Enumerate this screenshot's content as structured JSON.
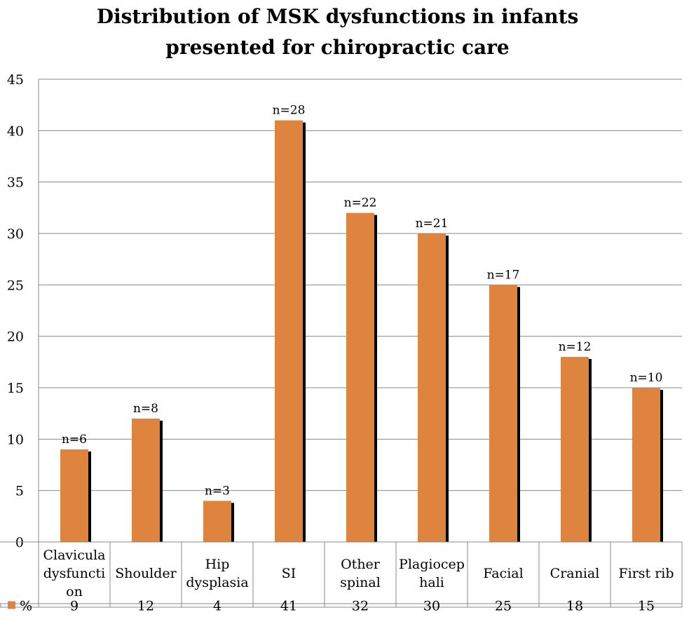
{
  "chart_data": {
    "type": "bar",
    "title_lines": [
      "Distribution of MSK dysfunctions in infants",
      "presented for chiropractic care"
    ],
    "categories": [
      [
        "Clavicula",
        "dysfuncti",
        "on"
      ],
      [
        "Shoulder"
      ],
      [
        "Hip",
        "dysplasia"
      ],
      [
        "SI"
      ],
      [
        "Other",
        "spinal"
      ],
      [
        "Plagiocep",
        "hali"
      ],
      [
        "Facial"
      ],
      [
        "Cranial"
      ],
      [
        "First rib"
      ]
    ],
    "series": [
      {
        "name": "%",
        "values": [
          9,
          12,
          4,
          41,
          32,
          30,
          25,
          18,
          15
        ]
      }
    ],
    "data_labels": [
      "n=6",
      "n=8",
      "n=3",
      "n=28",
      "n=22",
      "n=21",
      "n=17",
      "n=12",
      "n=10"
    ],
    "table_values": [
      "9",
      "12",
      "4",
      "41",
      "32",
      "30",
      "25",
      "18",
      "15"
    ],
    "ylim": [
      0,
      45
    ],
    "yticks": [
      0,
      5,
      10,
      15,
      20,
      25,
      30,
      35,
      40,
      45
    ],
    "grid": true,
    "legend": "data-table-row",
    "bar_color": "#DE843F",
    "shadow_color": "#000000",
    "grid_color": "#888888"
  }
}
